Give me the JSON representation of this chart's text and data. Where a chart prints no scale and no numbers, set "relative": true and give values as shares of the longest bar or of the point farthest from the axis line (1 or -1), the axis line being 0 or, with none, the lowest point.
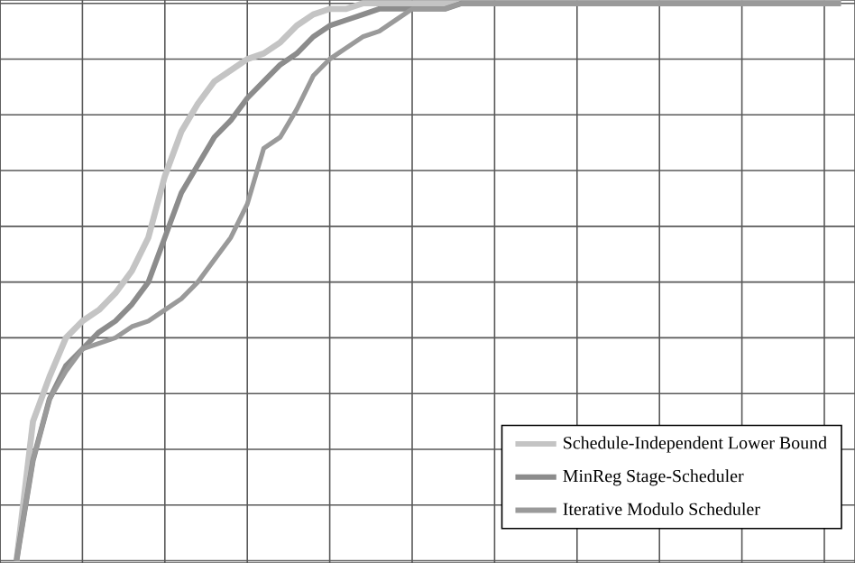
{
  "chart_data": {
    "type": "line",
    "relative": true,
    "grid": true,
    "legend": "bottom right",
    "marker": "none",
    "line_style": "solid",
    "categories": [
      null,
      null,
      null,
      null,
      null,
      null,
      null,
      null,
      null,
      null,
      null,
      null,
      null,
      null,
      null,
      null,
      null,
      null,
      null,
      null,
      null,
      null,
      null,
      null,
      null,
      null,
      null,
      null,
      null,
      null,
      null,
      null,
      null,
      null,
      null,
      null,
      null,
      null,
      null,
      null,
      null,
      null,
      null,
      null,
      null,
      null,
      null,
      null,
      null,
      null,
      null,
      null
    ],
    "series": [
      {
        "name": "Schedule-Independent Lower Bound",
        "color": "#c4c4c4",
        "values": [
          null,
          0,
          0.25,
          0.33,
          0.4,
          0.43,
          0.45,
          0.48,
          0.52,
          0.58,
          0.69,
          0.77,
          0.82,
          0.86,
          0.88,
          0.9,
          0.91,
          0.93,
          0.96,
          0.98,
          0.99,
          0.99,
          1,
          1,
          1,
          1,
          1,
          1,
          1,
          1,
          1,
          1,
          1,
          1,
          1,
          1,
          1,
          1,
          1,
          1,
          1,
          1,
          1,
          1,
          1,
          1,
          1,
          1,
          1,
          1,
          1,
          1
        ]
      },
      {
        "name": "MinReg Stage-Scheduler",
        "color": "#8c8c8c",
        "values": [
          null,
          0,
          0.18,
          0.29,
          0.35,
          0.38,
          0.41,
          0.43,
          0.46,
          0.5,
          0.58,
          0.66,
          0.71,
          0.76,
          0.79,
          0.83,
          0.86,
          0.89,
          0.91,
          0.94,
          0.96,
          0.97,
          0.98,
          0.99,
          0.99,
          0.99,
          0.99,
          0.99,
          1,
          1,
          1,
          1,
          1,
          1,
          1,
          1,
          1,
          1,
          1,
          1,
          1,
          1,
          1,
          1,
          1,
          1,
          1,
          1,
          1,
          1,
          1,
          1
        ]
      },
      {
        "name": "Iterative Modulo Scheduler",
        "color": "#9a9a9a",
        "values": [
          null,
          0,
          0.18,
          0.29,
          0.34,
          0.38,
          0.39,
          0.4,
          0.42,
          0.43,
          0.45,
          0.47,
          0.5,
          0.54,
          0.58,
          0.64,
          0.74,
          0.76,
          0.81,
          0.87,
          0.9,
          0.92,
          0.94,
          0.95,
          0.97,
          0.99,
          0.99,
          0.99,
          1,
          1,
          1,
          1,
          1,
          1,
          1,
          1,
          1,
          1,
          1,
          1,
          1,
          1,
          1,
          1,
          1,
          1,
          1,
          1,
          1,
          1,
          1,
          1
        ]
      }
    ]
  }
}
